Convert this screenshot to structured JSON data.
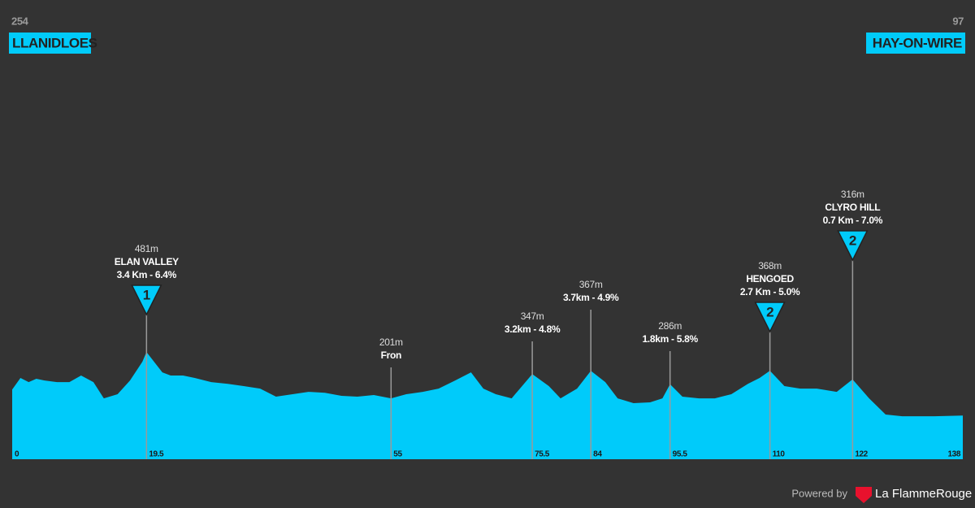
{
  "chart_data": {
    "type": "area",
    "color": "#00cbfa",
    "start": {
      "elevation": 254,
      "name": "LLANIDLOES"
    },
    "finish": {
      "elevation": 97,
      "name": "HAY-ON-WIRE"
    },
    "x": [
      0,
      1.2,
      2.4,
      3.5,
      4.7,
      6.5,
      8.3,
      10,
      11.8,
      13.3,
      15.3,
      17.1,
      18.9,
      19.5,
      21.8,
      23,
      24.8,
      26.5,
      28.9,
      31.3,
      33.6,
      36,
      38.3,
      40.7,
      43,
      45.4,
      47.8,
      50.1,
      52.5,
      55,
      57.2,
      59.6,
      61.9,
      64.3,
      66.6,
      68.4,
      70.2,
      72.5,
      74.3,
      75.5,
      77.9,
      79.6,
      82,
      84,
      86.1,
      87.9,
      90.2,
      92.6,
      94.4,
      95.5,
      97.3,
      99.7,
      102,
      104.4,
      106.8,
      108.5,
      110,
      112.1,
      114.4,
      116.8,
      119.7,
      122,
      124.4,
      126.8,
      129.2,
      131.5,
      133.9,
      138
    ],
    "values": [
      254,
      324,
      299,
      319,
      309,
      299,
      299,
      339,
      299,
      201,
      226,
      309,
      422,
      481,
      358,
      339,
      339,
      324,
      299,
      289,
      275,
      260,
      211,
      226,
      240,
      235,
      216,
      211,
      221,
      201,
      226,
      240,
      260,
      309,
      358,
      260,
      226,
      201,
      289,
      347,
      275,
      201,
      260,
      367,
      299,
      201,
      172,
      177,
      201,
      286,
      211,
      201,
      201,
      226,
      289,
      324,
      368,
      275,
      260,
      260,
      240,
      316,
      201,
      103,
      93,
      93,
      93,
      97
    ],
    "xlim": [
      0,
      138
    ],
    "ylim": [
      -167,
      2608
    ],
    "xticks": [
      0,
      19.5,
      55,
      75.5,
      84,
      95.5,
      110,
      122,
      138
    ],
    "climbs": [
      {
        "km": 19.5,
        "elevation": 481,
        "elevation_label": "481m",
        "name": "ELAN VALLEY",
        "detail": "3.4 Km - 6.4%",
        "category": 1
      },
      {
        "km": 55,
        "elevation": 201,
        "elevation_label": "201m",
        "name": "Fron"
      },
      {
        "km": 75.5,
        "elevation": 347,
        "elevation_label": "347m",
        "detail": "3.2km - 4.8%"
      },
      {
        "km": 84,
        "elevation": 367,
        "elevation_label": "367m",
        "detail": "3.7km - 4.9%"
      },
      {
        "km": 95.5,
        "elevation": 286,
        "elevation_label": "286m",
        "detail": "1.8km - 5.8%"
      },
      {
        "km": 110,
        "elevation": 368,
        "elevation_label": "368m",
        "name": "HENGOED",
        "detail": "2.7 Km - 5.0%",
        "category": 2
      },
      {
        "km": 122,
        "elevation": 316,
        "elevation_label": "316m",
        "name": "CLYRO HILL",
        "detail": "0.7 Km - 7.0%",
        "category": 2
      }
    ]
  },
  "footer": {
    "powered_by": "Powered by",
    "brand": "La FlammeRouge"
  }
}
